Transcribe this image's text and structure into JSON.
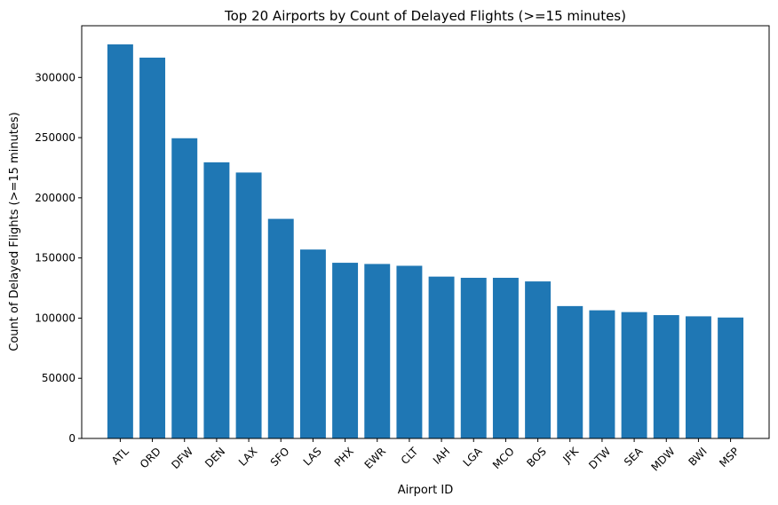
{
  "chart_data": {
    "type": "bar",
    "title": "Top 20 Airports by Count of Delayed Flights (>=15 minutes)",
    "xlabel": "Airport ID",
    "ylabel": "Count of Delayed Flights (>=15 minutes)",
    "categories": [
      "ATL",
      "ORD",
      "DFW",
      "DEN",
      "LAX",
      "SFO",
      "LAS",
      "PHX",
      "EWR",
      "CLT",
      "IAH",
      "LGA",
      "MCO",
      "BOS",
      "JFK",
      "DTW",
      "SEA",
      "MDW",
      "BWI",
      "MSP"
    ],
    "values": [
      327500,
      316500,
      249500,
      229500,
      221000,
      182500,
      157000,
      146000,
      145000,
      143500,
      134500,
      133500,
      133500,
      130500,
      110000,
      106500,
      105000,
      102500,
      101500,
      100500
    ],
    "ylim": [
      0,
      343000
    ],
    "yticks": [
      0,
      50000,
      100000,
      150000,
      200000,
      250000,
      300000
    ],
    "bar_color": "#1f77b4",
    "grid": false,
    "legend": "none"
  }
}
